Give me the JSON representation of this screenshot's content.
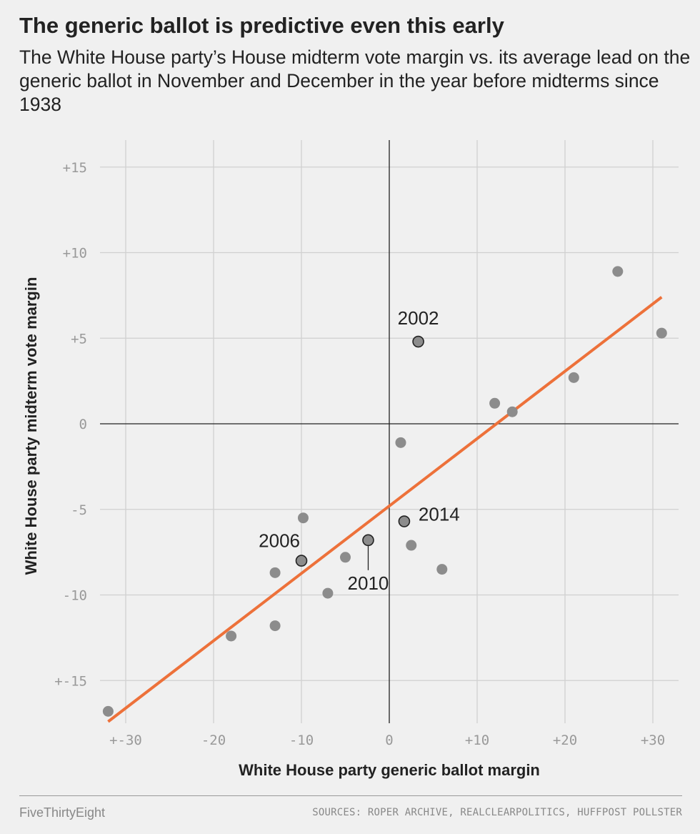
{
  "header": {
    "title": "The generic ballot is predictive even this early",
    "subtitle": "The White House party’s House midterm vote margin vs. its average lead on the generic ballot in November and December in the year before midterms since 1938"
  },
  "footer": {
    "brand": "FiveThirtyEight",
    "sources": "SOURCES: ROPER ARCHIVE, REALCLEARPOLITICS, HUFFPOST POLLSTER"
  },
  "colors": {
    "background": "#f0f0f0",
    "grid": "#d0d0d0",
    "axis": "#222222",
    "point": "#8c8c8c",
    "highlight_point": "#8c8c8c",
    "trend": "#ed713a"
  },
  "chart_data": {
    "type": "scatter",
    "xlabel": "White House party generic ballot margin",
    "ylabel": "White House party midterm vote margin",
    "xlim": [
      -32.5,
      33
    ],
    "ylim": [
      -17.5,
      16.5
    ],
    "grid": true,
    "x_ticks": [
      {
        "value": -30,
        "label": "+-30"
      },
      {
        "value": -20,
        "label": "-20"
      },
      {
        "value": -10,
        "label": "-10"
      },
      {
        "value": 0,
        "label": "0"
      },
      {
        "value": 10,
        "label": "+10"
      },
      {
        "value": 20,
        "label": "+20"
      },
      {
        "value": 30,
        "label": "+30"
      }
    ],
    "y_ticks": [
      {
        "value": 15,
        "label": "+15"
      },
      {
        "value": 10,
        "label": "+10"
      },
      {
        "value": 5,
        "label": "+5"
      },
      {
        "value": 0,
        "label": "0"
      },
      {
        "value": -5,
        "label": "-5"
      },
      {
        "value": -10,
        "label": "-10"
      },
      {
        "value": -15,
        "label": "+-15"
      }
    ],
    "points": [
      {
        "x": -32,
        "y": -16.8
      },
      {
        "x": -18,
        "y": -12.4
      },
      {
        "x": -13,
        "y": -11.8
      },
      {
        "x": -13,
        "y": -8.7
      },
      {
        "x": -9.8,
        "y": -5.5
      },
      {
        "x": -7,
        "y": -9.9
      },
      {
        "x": -5,
        "y": -7.8
      },
      {
        "x": 1.3,
        "y": -1.1
      },
      {
        "x": 2.5,
        "y": -7.1
      },
      {
        "x": 6,
        "y": -8.5
      },
      {
        "x": 12,
        "y": 1.2
      },
      {
        "x": 14,
        "y": 0.7
      },
      {
        "x": 21,
        "y": 2.7
      },
      {
        "x": 26,
        "y": 8.9
      },
      {
        "x": 31,
        "y": 5.3
      }
    ],
    "highlighted": [
      {
        "label": "2002",
        "x": 3.3,
        "y": 4.8,
        "label_pos": "above"
      },
      {
        "label": "2006",
        "x": -10,
        "y": -8,
        "label_pos": "above-left"
      },
      {
        "label": "2010",
        "x": -2.4,
        "y": -6.8,
        "label_pos": "below"
      },
      {
        "label": "2014",
        "x": 1.7,
        "y": -5.7,
        "label_pos": "right"
      }
    ],
    "trendline": {
      "x": [
        -32,
        31
      ],
      "y": [
        -17.4,
        7.4
      ]
    }
  }
}
